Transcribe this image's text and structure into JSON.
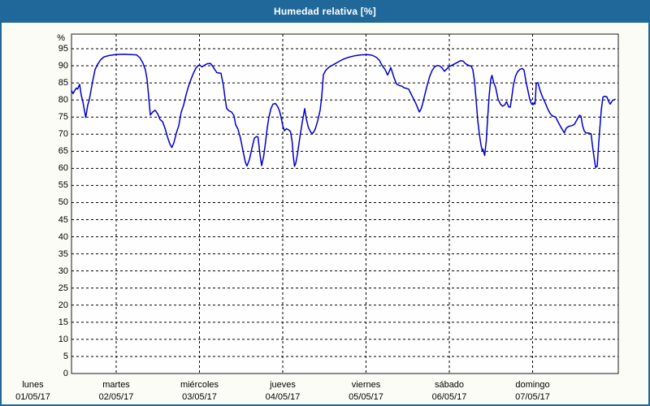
{
  "window": {
    "title": "Humedad relativa [%]"
  },
  "colors": {
    "header_bg": "#20689a",
    "window_border": "#20689a",
    "background": "#fbfcf6",
    "plot_bg": "#fefefe",
    "plot_border": "#1a1a1a",
    "grid": "#000000",
    "line": "#0000cc",
    "title_text": "#ffffff",
    "text": "#000000"
  },
  "chart_data": {
    "type": "line",
    "title": "Humedad relativa [%]",
    "grid": "dashed",
    "legend": "none",
    "y_axis": {
      "unit": "%",
      "min": 0,
      "max": 95,
      "tick_step": 5,
      "tick_labels": [
        "0",
        "5",
        "10",
        "15",
        "20",
        "25",
        "30",
        "35",
        "40",
        "45",
        "50",
        "55",
        "60",
        "65",
        "70",
        "75",
        "80",
        "85",
        "90",
        "95"
      ]
    },
    "x_axis": {
      "unit": "days",
      "range_days": [
        0,
        7
      ],
      "day_labels": [
        {
          "name": "lunes",
          "date": "01/05/17"
        },
        {
          "name": "martes",
          "date": "02/05/17"
        },
        {
          "name": "miércoles",
          "date": "03/05/17"
        },
        {
          "name": "jueves",
          "date": "04/05/17"
        },
        {
          "name": "viernes",
          "date": "05/05/17"
        },
        {
          "name": "sábado",
          "date": "06/05/17"
        },
        {
          "name": "domingo",
          "date": "07/05/17"
        }
      ]
    },
    "series": [
      {
        "name": "Humedad relativa",
        "color": "#0000cc",
        "points": [
          [
            0.463,
            82.7
          ],
          [
            0.483,
            81.9
          ],
          [
            0.502,
            82.8
          ],
          [
            0.522,
            83.5
          ],
          [
            0.537,
            83.2
          ],
          [
            0.561,
            84.6
          ],
          [
            0.58,
            81.5
          ],
          [
            0.6,
            79.5
          ],
          [
            0.634,
            74.9
          ],
          [
            0.659,
            78.5
          ],
          [
            0.678,
            80.2
          ],
          [
            0.717,
            85.4
          ],
          [
            0.746,
            88.9
          ],
          [
            0.776,
            90.4
          ],
          [
            0.815,
            91.8
          ],
          [
            0.854,
            92.6
          ],
          [
            0.912,
            93.0
          ],
          [
            0.99,
            93.3
          ],
          [
            1.088,
            93.4
          ],
          [
            1.185,
            93.3
          ],
          [
            1.244,
            93.2
          ],
          [
            1.283,
            92.4
          ],
          [
            1.322,
            90.8
          ],
          [
            1.351,
            88.8
          ],
          [
            1.371,
            86.0
          ],
          [
            1.39,
            81.0
          ],
          [
            1.41,
            75.6
          ],
          [
            1.439,
            76.5
          ],
          [
            1.468,
            77.0
          ],
          [
            1.498,
            76.0
          ],
          [
            1.527,
            74.3
          ],
          [
            1.556,
            73.7
          ],
          [
            1.585,
            71.8
          ],
          [
            1.615,
            69.3
          ],
          [
            1.644,
            67.2
          ],
          [
            1.668,
            66.1
          ],
          [
            1.693,
            67.5
          ],
          [
            1.722,
            70.3
          ],
          [
            1.751,
            72.5
          ],
          [
            1.781,
            76.5
          ],
          [
            1.81,
            78.5
          ],
          [
            1.839,
            81.5
          ],
          [
            1.868,
            84.0
          ],
          [
            1.898,
            86.0
          ],
          [
            1.927,
            87.8
          ],
          [
            1.956,
            89.3
          ],
          [
            1.985,
            90.1
          ],
          [
            2.005,
            90.2
          ],
          [
            2.029,
            89.7
          ],
          [
            2.063,
            90.2
          ],
          [
            2.093,
            90.6
          ],
          [
            2.132,
            90.7
          ],
          [
            2.161,
            89.8
          ],
          [
            2.181,
            89.0
          ],
          [
            2.21,
            88.0
          ],
          [
            2.259,
            87.8
          ],
          [
            2.288,
            84.2
          ],
          [
            2.307,
            80.5
          ],
          [
            2.327,
            77.5
          ],
          [
            2.356,
            76.8
          ],
          [
            2.385,
            76.5
          ],
          [
            2.415,
            75.4
          ],
          [
            2.434,
            72.8
          ],
          [
            2.463,
            71.4
          ],
          [
            2.493,
            68.8
          ],
          [
            2.522,
            65.2
          ],
          [
            2.551,
            61.8
          ],
          [
            2.571,
            60.7
          ],
          [
            2.6,
            62.6
          ],
          [
            2.629,
            65.8
          ],
          [
            2.659,
            68.8
          ],
          [
            2.683,
            69.3
          ],
          [
            2.702,
            69.2
          ],
          [
            2.727,
            64.0
          ],
          [
            2.746,
            60.8
          ],
          [
            2.771,
            63.5
          ],
          [
            2.795,
            68.0
          ],
          [
            2.815,
            72.0
          ],
          [
            2.834,
            75.0
          ],
          [
            2.859,
            77.5
          ],
          [
            2.883,
            78.8
          ],
          [
            2.912,
            79.0
          ],
          [
            2.941,
            78.0
          ],
          [
            2.961,
            76.8
          ],
          [
            2.98,
            75.0
          ],
          [
            3.0,
            72.5
          ],
          [
            3.02,
            71.0
          ],
          [
            3.044,
            71.6
          ],
          [
            3.068,
            71.3
          ],
          [
            3.093,
            70.8
          ],
          [
            3.112,
            68.0
          ],
          [
            3.127,
            63.5
          ],
          [
            3.141,
            60.6
          ],
          [
            3.156,
            61.5
          ],
          [
            3.176,
            64.0
          ],
          [
            3.205,
            69.0
          ],
          [
            3.234,
            73.5
          ],
          [
            3.263,
            77.5
          ],
          [
            3.283,
            74.5
          ],
          [
            3.307,
            72.0
          ],
          [
            3.332,
            70.8
          ],
          [
            3.351,
            70.1
          ],
          [
            3.371,
            70.6
          ],
          [
            3.39,
            71.5
          ],
          [
            3.42,
            74.0
          ],
          [
            3.449,
            77.0
          ],
          [
            3.468,
            81.0
          ],
          [
            3.488,
            87.4
          ],
          [
            3.517,
            88.7
          ],
          [
            3.556,
            89.6
          ],
          [
            3.605,
            90.3
          ],
          [
            3.663,
            91.1
          ],
          [
            3.722,
            91.9
          ],
          [
            3.78,
            92.4
          ],
          [
            3.859,
            92.9
          ],
          [
            3.937,
            93.2
          ],
          [
            4.015,
            93.3
          ],
          [
            4.073,
            93.1
          ],
          [
            4.122,
            92.5
          ],
          [
            4.161,
            91.6
          ],
          [
            4.19,
            90.2
          ],
          [
            4.229,
            88.9
          ],
          [
            4.259,
            87.3
          ],
          [
            4.278,
            88.3
          ],
          [
            4.298,
            89.5
          ],
          [
            4.317,
            88.0
          ],
          [
            4.337,
            86.5
          ],
          [
            4.366,
            84.7
          ],
          [
            4.405,
            84.2
          ],
          [
            4.434,
            84.0
          ],
          [
            4.454,
            83.6
          ],
          [
            4.483,
            83.4
          ],
          [
            4.512,
            83.2
          ],
          [
            4.532,
            82.2
          ],
          [
            4.561,
            80.8
          ],
          [
            4.6,
            78.9
          ],
          [
            4.639,
            76.5
          ],
          [
            4.659,
            77.2
          ],
          [
            4.678,
            78.7
          ],
          [
            4.707,
            81.7
          ],
          [
            4.737,
            84.5
          ],
          [
            4.766,
            87.0
          ],
          [
            4.795,
            88.7
          ],
          [
            4.824,
            89.7
          ],
          [
            4.854,
            90.1
          ],
          [
            4.883,
            90.0
          ],
          [
            4.912,
            89.4
          ],
          [
            4.941,
            88.4
          ],
          [
            4.971,
            89.1
          ],
          [
            5.0,
            89.8
          ],
          [
            5.049,
            90.4
          ],
          [
            5.098,
            91.0
          ],
          [
            5.137,
            91.5
          ],
          [
            5.166,
            91.4
          ],
          [
            5.195,
            90.6
          ],
          [
            5.234,
            90.1
          ],
          [
            5.263,
            89.9
          ],
          [
            5.283,
            88.8
          ],
          [
            5.302,
            85.5
          ],
          [
            5.322,
            80.0
          ],
          [
            5.341,
            74.0
          ],
          [
            5.361,
            70.0
          ],
          [
            5.38,
            66.8
          ],
          [
            5.395,
            65.2
          ],
          [
            5.405,
            65.6
          ],
          [
            5.424,
            63.8
          ],
          [
            5.444,
            68.0
          ],
          [
            5.459,
            74.0
          ],
          [
            5.478,
            81.2
          ],
          [
            5.498,
            86.0
          ],
          [
            5.512,
            87.2
          ],
          [
            5.532,
            85.2
          ],
          [
            5.556,
            83.7
          ],
          [
            5.585,
            80.2
          ],
          [
            5.615,
            78.8
          ],
          [
            5.639,
            78.2
          ],
          [
            5.663,
            78.5
          ],
          [
            5.688,
            79.5
          ],
          [
            5.712,
            78.0
          ],
          [
            5.732,
            77.9
          ],
          [
            5.751,
            81.0
          ],
          [
            5.771,
            84.5
          ],
          [
            5.795,
            87.0
          ],
          [
            5.82,
            88.3
          ],
          [
            5.849,
            89.0
          ],
          [
            5.878,
            89.2
          ],
          [
            5.898,
            88.7
          ],
          [
            5.922,
            85.2
          ],
          [
            5.946,
            82.5
          ],
          [
            5.966,
            80.2
          ],
          [
            5.985,
            78.9
          ],
          [
            6.005,
            78.6
          ],
          [
            6.02,
            79.2
          ],
          [
            6.029,
            78.8
          ],
          [
            6.044,
            84.8
          ],
          [
            6.063,
            85.1
          ],
          [
            6.093,
            82.6
          ],
          [
            6.122,
            80.7
          ],
          [
            6.151,
            79.2
          ],
          [
            6.18,
            77.5
          ],
          [
            6.21,
            76.1
          ],
          [
            6.239,
            75.3
          ],
          [
            6.278,
            75.0
          ],
          [
            6.307,
            73.5
          ],
          [
            6.346,
            71.8
          ],
          [
            6.38,
            70.4
          ],
          [
            6.405,
            71.8
          ],
          [
            6.434,
            72.3
          ],
          [
            6.473,
            72.5
          ],
          [
            6.502,
            72.9
          ],
          [
            6.532,
            74.2
          ],
          [
            6.561,
            75.5
          ],
          [
            6.58,
            75.3
          ],
          [
            6.6,
            72.5
          ],
          [
            6.62,
            71.0
          ],
          [
            6.639,
            70.4
          ],
          [
            6.678,
            70.3
          ],
          [
            6.702,
            70.1
          ],
          [
            6.717,
            67.0
          ],
          [
            6.737,
            63.5
          ],
          [
            6.756,
            60.3
          ],
          [
            6.776,
            60.6
          ],
          [
            6.79,
            66.0
          ],
          [
            6.805,
            71.0
          ],
          [
            6.824,
            77.0
          ],
          [
            6.844,
            80.8
          ],
          [
            6.863,
            81.1
          ],
          [
            6.893,
            80.9
          ],
          [
            6.912,
            79.6
          ],
          [
            6.932,
            78.8
          ],
          [
            6.961,
            79.9
          ],
          [
            6.99,
            80.2
          ]
        ]
      }
    ]
  }
}
